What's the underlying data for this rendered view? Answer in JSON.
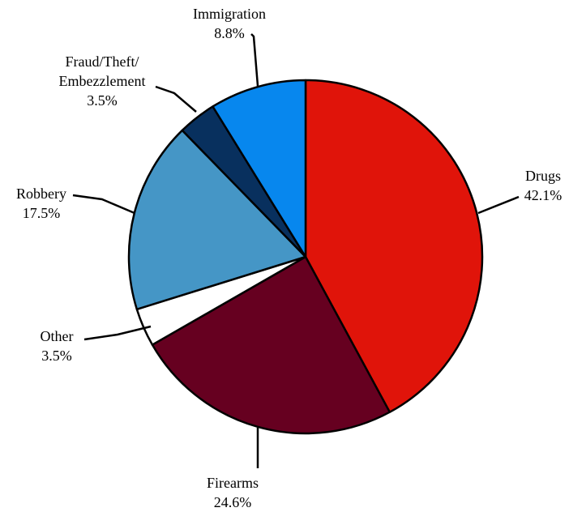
{
  "chart_data": {
    "type": "pie",
    "title": "",
    "slices": [
      {
        "name": "Drugs",
        "value": 42.1,
        "label": "42.1%",
        "color": "#E0140A"
      },
      {
        "name": "Firearms",
        "value": 24.6,
        "label": "24.6%",
        "color": "#660020"
      },
      {
        "name": "Other",
        "value": 3.5,
        "label": "3.5%",
        "color": "#FFFFFF"
      },
      {
        "name": "Robbery",
        "value": 17.5,
        "label": "17.5%",
        "color": "#4596C6"
      },
      {
        "name": "Fraud/Theft/ Embezzlement",
        "value": 3.5,
        "label": "3.5%",
        "color": "#08305E"
      },
      {
        "name": "Immigration",
        "value": 8.8,
        "label": "8.8%",
        "color": "#0787EE"
      }
    ],
    "start_angle": "12 o'clock",
    "direction": "clockwise",
    "legend": "none",
    "border_color": "#000000"
  }
}
